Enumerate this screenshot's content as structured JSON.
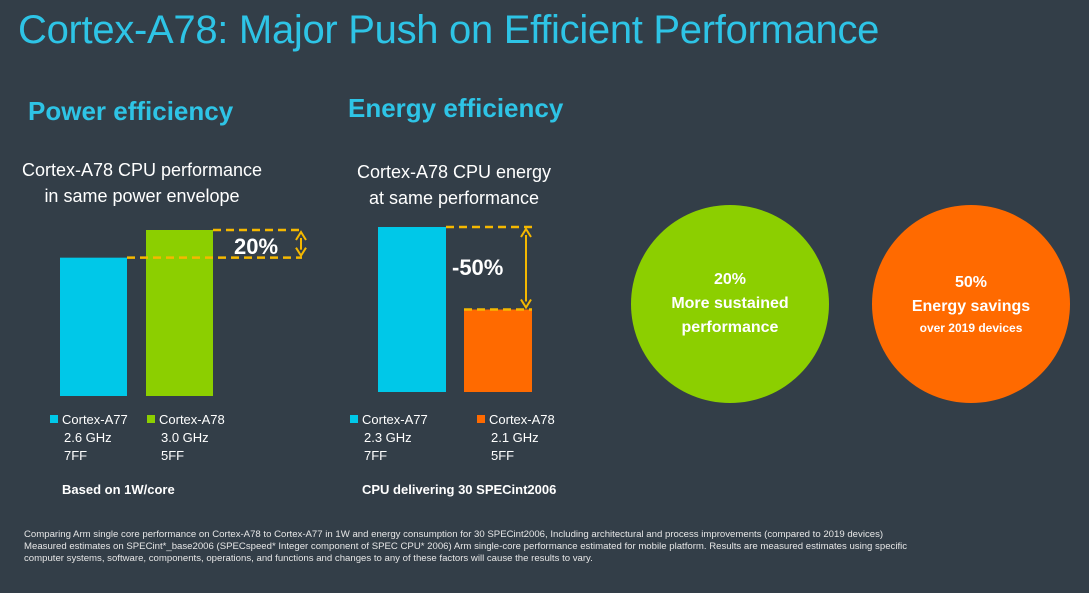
{
  "title": "Cortex-A78: Major Push on Efficient Performance",
  "colors": {
    "background": "#333e48",
    "accent_blue": "#2ec4e6",
    "a77_blue": "#00c8e8",
    "a78_green": "#8ccf00",
    "a78_orange": "#ff6a00",
    "dashed_yellow": "#f5b800"
  },
  "power": {
    "heading": "Power efficiency",
    "subtitle_line1": "Cortex-A78 CPU performance",
    "subtitle_line2": "in same power envelope",
    "callout": "20%",
    "legend": [
      {
        "name": "Cortex-A77",
        "freq": "2.6 GHz",
        "node": "7FF"
      },
      {
        "name": "Cortex-A78",
        "freq": "3.0 GHz",
        "node": "5FF"
      }
    ],
    "note": "Based on 1W/core"
  },
  "energy": {
    "heading": "Energy efficiency",
    "subtitle_line1": "Cortex-A78 CPU energy",
    "subtitle_line2": "at same performance",
    "callout": "-50%",
    "legend": [
      {
        "name": "Cortex-A77",
        "freq": "2.3 GHz",
        "node": "7FF"
      },
      {
        "name": "Cortex-A78",
        "freq": "2.1 GHz",
        "node": "5FF"
      }
    ],
    "note": "CPU delivering 30 SPECint2006"
  },
  "chart_data": [
    {
      "type": "bar",
      "categories": [
        "Cortex-A77",
        "Cortex-A78"
      ],
      "values": [
        1.0,
        1.2
      ],
      "ylim": [
        0,
        1.2
      ]
    },
    {
      "type": "bar",
      "categories": [
        "Cortex-A77",
        "Cortex-A78"
      ],
      "values": [
        1.0,
        0.5
      ],
      "ylim": [
        0,
        1.0
      ]
    }
  ],
  "circles": [
    {
      "line1": "20%",
      "line2": "More sustained",
      "line3": "performance",
      "color": "#8ccf00"
    },
    {
      "line1": "50%",
      "line2": "Energy savings",
      "line3": "over 2019 devices",
      "color": "#ff6a00"
    }
  ],
  "footnote": {
    "line1": "Comparing Arm single core performance on Cortex-A78 to Cortex-A77 in 1W and energy consumption for 30 SPECint2006, Including architectural and process improvements (compared to 2019 devices)",
    "line2": "Measured estimates on SPECint*_base2006 (SPECspeed* Integer component of SPEC CPU* 2006) Arm single-core performance estimated for mobile platform. Results are measured estimates using specific",
    "line3": "computer systems, software, components, operations, and functions and changes to any of these factors will cause the results to vary."
  }
}
